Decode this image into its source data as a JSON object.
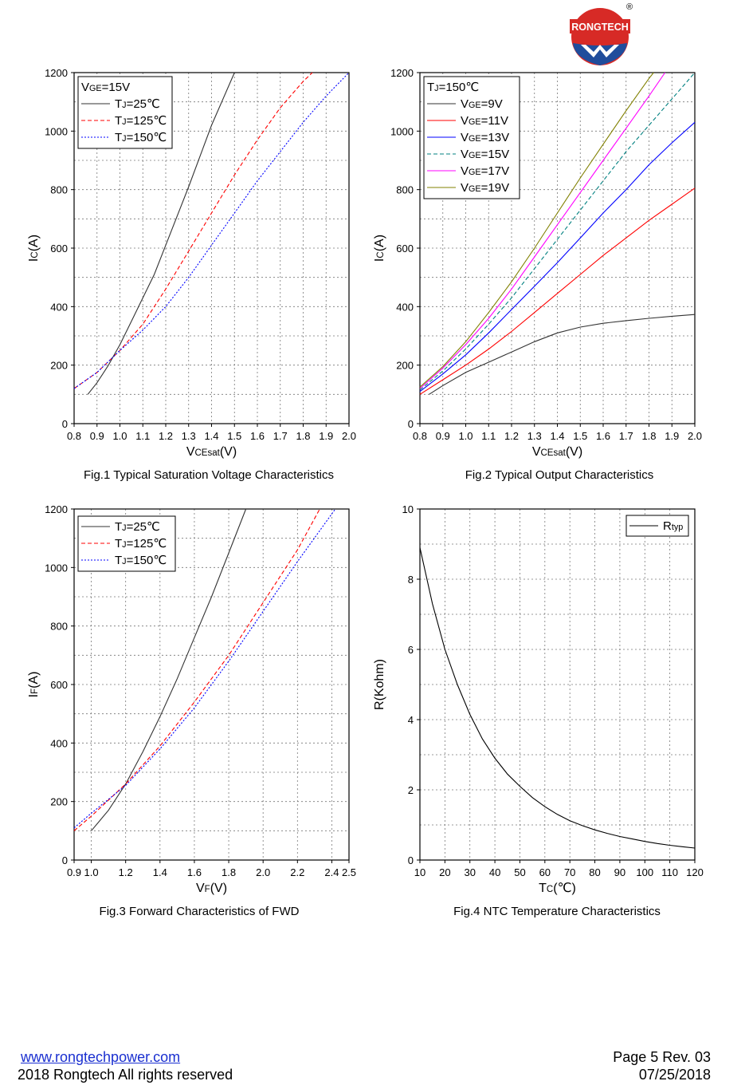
{
  "brand": {
    "name": "RONGTECH",
    "registered_mark": "®"
  },
  "footer": {
    "website": "www.rongtechpower.com",
    "copyright": "2018 Rongtech All rights reserved",
    "page": "Page 5  Rev. 03",
    "date": "07/25/2018"
  },
  "chart_data": [
    {
      "type": "line",
      "caption": "Fig.1 Typical Saturation Voltage Characteristics",
      "xlabel": {
        "main": "V",
        "sub": "CEsat",
        "tail": "(V)"
      },
      "ylabel": {
        "main": "I",
        "sub": "C",
        "tail": "(A)"
      },
      "xlim": [
        0.8,
        2.0
      ],
      "ylim": [
        0,
        1200
      ],
      "xticks": [
        0.8,
        0.9,
        1.0,
        1.1,
        1.2,
        1.3,
        1.4,
        1.5,
        1.6,
        1.7,
        1.8,
        1.9,
        2.0
      ],
      "xtick_labels": [
        "0.8",
        "0.9",
        "1.0",
        "1.1",
        "1.2",
        "1.3",
        "1.4",
        "1.5",
        "1.6",
        "1.7",
        "1.8",
        "1.9",
        "2.0"
      ],
      "yticks": [
        0,
        200,
        400,
        600,
        800,
        1000,
        1200
      ],
      "ytick_labels": [
        "0",
        "200",
        "400",
        "600",
        "800",
        "1000",
        "1200"
      ],
      "grid": true,
      "legend": {
        "placement": "top-left",
        "title": {
          "main": "V",
          "sub": "GE",
          "tail": "=15V"
        },
        "entries": [
          {
            "main": "T",
            "sub": "J",
            "tail": "=25℃"
          },
          {
            "main": "T",
            "sub": "J",
            "tail": "=125℃"
          },
          {
            "main": "T",
            "sub": "J",
            "tail": "=150℃"
          }
        ]
      },
      "series": [
        {
          "name": "TJ=25℃",
          "color": "#333333",
          "dash": "solid",
          "x": [
            0.86,
            0.9,
            0.95,
            1.0,
            1.05,
            1.1,
            1.15,
            1.2,
            1.3,
            1.4,
            1.5
          ],
          "y": [
            100,
            140,
            200,
            270,
            350,
            430,
            510,
            610,
            810,
            1020,
            1200
          ]
        },
        {
          "name": "TJ=125℃",
          "color": "#ff0000",
          "dash": "dashed",
          "x": [
            0.8,
            0.9,
            1.0,
            1.1,
            1.2,
            1.3,
            1.4,
            1.5,
            1.6,
            1.7,
            1.8,
            1.84
          ],
          "y": [
            120,
            175,
            250,
            340,
            460,
            590,
            720,
            850,
            970,
            1080,
            1170,
            1200
          ]
        },
        {
          "name": "TJ=150℃",
          "color": "#0000ff",
          "dash": "dotted",
          "x": [
            0.8,
            0.9,
            1.0,
            1.1,
            1.2,
            1.3,
            1.4,
            1.5,
            1.6,
            1.7,
            1.8,
            1.9,
            2.0
          ],
          "y": [
            120,
            175,
            250,
            320,
            400,
            500,
            610,
            720,
            830,
            930,
            1030,
            1120,
            1200
          ]
        }
      ]
    },
    {
      "type": "line",
      "caption": "Fig.2 Typical Output Characteristics",
      "xlabel": {
        "main": "V",
        "sub": "CEsat",
        "tail": "(V)"
      },
      "ylabel": {
        "main": "I",
        "sub": "C",
        "tail": "(A)"
      },
      "xlim": [
        0.8,
        2.0
      ],
      "ylim": [
        0,
        1200
      ],
      "xticks": [
        0.8,
        0.9,
        1.0,
        1.1,
        1.2,
        1.3,
        1.4,
        1.5,
        1.6,
        1.7,
        1.8,
        1.9,
        2.0
      ],
      "xtick_labels": [
        "0.8",
        "0.9",
        "1.0",
        "1.1",
        "1.2",
        "1.3",
        "1.4",
        "1.5",
        "1.6",
        "1.7",
        "1.8",
        "1.9",
        "2.0"
      ],
      "yticks": [
        0,
        200,
        400,
        600,
        800,
        1000,
        1200
      ],
      "ytick_labels": [
        "0",
        "200",
        "400",
        "600",
        "800",
        "1000",
        "1200"
      ],
      "grid": true,
      "legend": {
        "placement": "top-left",
        "title": {
          "main": "T",
          "sub": "J",
          "tail": "=150℃"
        },
        "entries": [
          {
            "main": "V",
            "sub": "GE",
            "tail": "=9V"
          },
          {
            "main": "V",
            "sub": "GE",
            "tail": "=11V"
          },
          {
            "main": "V",
            "sub": "GE",
            "tail": "=13V"
          },
          {
            "main": "V",
            "sub": "GE",
            "tail": "=15V"
          },
          {
            "main": "V",
            "sub": "GE",
            "tail": "=17V"
          },
          {
            "main": "V",
            "sub": "GE",
            "tail": "=19V"
          }
        ]
      },
      "series": [
        {
          "name": "VGE=9V",
          "color": "#333333",
          "dash": "solid",
          "x": [
            0.84,
            0.9,
            1.0,
            1.1,
            1.2,
            1.3,
            1.4,
            1.5,
            1.6,
            1.7,
            1.8,
            1.9,
            2.0
          ],
          "y": [
            100,
            130,
            175,
            210,
            245,
            280,
            310,
            330,
            343,
            352,
            360,
            367,
            373
          ]
        },
        {
          "name": "VGE=11V",
          "color": "#ff0000",
          "dash": "solid",
          "x": [
            0.8,
            0.9,
            1.0,
            1.1,
            1.2,
            1.3,
            1.4,
            1.5,
            1.6,
            1.7,
            1.8,
            1.9,
            2.0
          ],
          "y": [
            100,
            150,
            200,
            255,
            315,
            380,
            445,
            510,
            575,
            635,
            695,
            750,
            805
          ]
        },
        {
          "name": "VGE=13V",
          "color": "#0000ff",
          "dash": "solid",
          "x": [
            0.8,
            0.9,
            1.0,
            1.1,
            1.2,
            1.3,
            1.4,
            1.5,
            1.6,
            1.7,
            1.8,
            1.9,
            2.0
          ],
          "y": [
            110,
            170,
            235,
            310,
            390,
            470,
            550,
            635,
            720,
            800,
            885,
            960,
            1030
          ]
        },
        {
          "name": "VGE=15V",
          "color": "#008080",
          "dash": "dashed",
          "x": [
            0.8,
            0.9,
            1.0,
            1.1,
            1.2,
            1.3,
            1.4,
            1.5,
            1.6,
            1.7,
            1.8,
            1.9,
            2.0
          ],
          "y": [
            115,
            180,
            255,
            340,
            430,
            530,
            630,
            730,
            830,
            930,
            1020,
            1110,
            1200
          ]
        },
        {
          "name": "VGE=17V",
          "color": "#ff00ff",
          "dash": "solid",
          "x": [
            0.8,
            0.9,
            1.0,
            1.1,
            1.2,
            1.3,
            1.4,
            1.5,
            1.6,
            1.7,
            1.8,
            1.87
          ],
          "y": [
            120,
            190,
            270,
            360,
            460,
            570,
            680,
            790,
            900,
            1010,
            1120,
            1200
          ]
        },
        {
          "name": "VGE=19V",
          "color": "#808000",
          "dash": "solid",
          "x": [
            0.8,
            0.9,
            1.0,
            1.1,
            1.2,
            1.3,
            1.4,
            1.5,
            1.6,
            1.7,
            1.8,
            1.82
          ],
          "y": [
            125,
            195,
            280,
            380,
            485,
            600,
            720,
            840,
            955,
            1070,
            1180,
            1200
          ]
        }
      ]
    },
    {
      "type": "line",
      "caption": "Fig.3 Forward Characteristics of FWD",
      "xlabel": {
        "main": "V",
        "sub": "F",
        "tail": "(V)"
      },
      "ylabel": {
        "main": "I",
        "sub": "F",
        "tail": "(A)"
      },
      "xlim": [
        0.9,
        2.5
      ],
      "ylim": [
        0,
        1200
      ],
      "xticks": [
        0.9,
        1.0,
        1.2,
        1.4,
        1.6,
        1.8,
        2.0,
        2.2,
        2.4,
        2.5
      ],
      "xtick_labels": [
        "0.9",
        "1.0",
        "1.2",
        "1.4",
        "1.6",
        "1.8",
        "2.0",
        "2.2",
        "2.4",
        "2.5"
      ],
      "yticks": [
        0,
        200,
        400,
        600,
        800,
        1000,
        1200
      ],
      "ytick_labels": [
        "0",
        "200",
        "400",
        "600",
        "800",
        "1000",
        "1200"
      ],
      "grid": true,
      "legend": {
        "placement": "top-left",
        "title": null,
        "entries": [
          {
            "main": "T",
            "sub": "J",
            "tail": "=25℃"
          },
          {
            "main": "T",
            "sub": "J",
            "tail": "=125℃"
          },
          {
            "main": "T",
            "sub": "J",
            "tail": "=150℃"
          }
        ]
      },
      "series": [
        {
          "name": "TJ=25℃",
          "color": "#333333",
          "dash": "solid",
          "x": [
            1.0,
            1.1,
            1.2,
            1.3,
            1.4,
            1.5,
            1.6,
            1.7,
            1.8,
            1.9
          ],
          "y": [
            100,
            170,
            260,
            370,
            490,
            620,
            760,
            900,
            1050,
            1200
          ]
        },
        {
          "name": "TJ=125℃",
          "color": "#ff0000",
          "dash": "dashed",
          "x": [
            0.9,
            1.0,
            1.2,
            1.4,
            1.6,
            1.8,
            2.0,
            2.2,
            2.33
          ],
          "y": [
            100,
            150,
            260,
            390,
            540,
            700,
            880,
            1060,
            1200
          ]
        },
        {
          "name": "TJ=150℃",
          "color": "#0000ff",
          "dash": "dotted",
          "x": [
            0.9,
            1.0,
            1.2,
            1.4,
            1.6,
            1.8,
            2.0,
            2.2,
            2.42
          ],
          "y": [
            110,
            160,
            255,
            380,
            520,
            680,
            850,
            1020,
            1200
          ]
        }
      ]
    },
    {
      "type": "line",
      "caption": "Fig.4 NTC Temperature Characteristics",
      "xlabel": {
        "main": "T",
        "sub": "C",
        "tail": "(℃)"
      },
      "ylabel": {
        "main": "R(Kohm)",
        "sub": "",
        "tail": ""
      },
      "xlim": [
        10,
        120
      ],
      "ylim": [
        0,
        10
      ],
      "xticks": [
        10,
        20,
        30,
        40,
        50,
        60,
        70,
        80,
        90,
        100,
        110,
        120
      ],
      "xtick_labels": [
        "10",
        "20",
        "30",
        "40",
        "50",
        "60",
        "70",
        "80",
        "90",
        "100",
        "110",
        "120"
      ],
      "yticks": [
        0,
        2,
        4,
        6,
        8,
        10
      ],
      "ytick_labels": [
        "0",
        "2",
        "4",
        "6",
        "8",
        "10"
      ],
      "grid": true,
      "legend": {
        "placement": "top-right",
        "title": null,
        "entries": [
          {
            "main": "R",
            "sub": "typ",
            "tail": ""
          }
        ]
      },
      "series": [
        {
          "name": "Rtyp",
          "color": "#000000",
          "dash": "solid",
          "x": [
            10,
            15,
            20,
            25,
            30,
            35,
            40,
            45,
            50,
            55,
            60,
            65,
            70,
            75,
            80,
            85,
            90,
            95,
            100,
            105,
            110,
            115,
            120
          ],
          "y": [
            8.9,
            7.3,
            6.0,
            5.0,
            4.15,
            3.45,
            2.9,
            2.45,
            2.1,
            1.78,
            1.52,
            1.3,
            1.12,
            0.98,
            0.86,
            0.76,
            0.67,
            0.6,
            0.53,
            0.47,
            0.42,
            0.38,
            0.34
          ]
        }
      ]
    }
  ]
}
